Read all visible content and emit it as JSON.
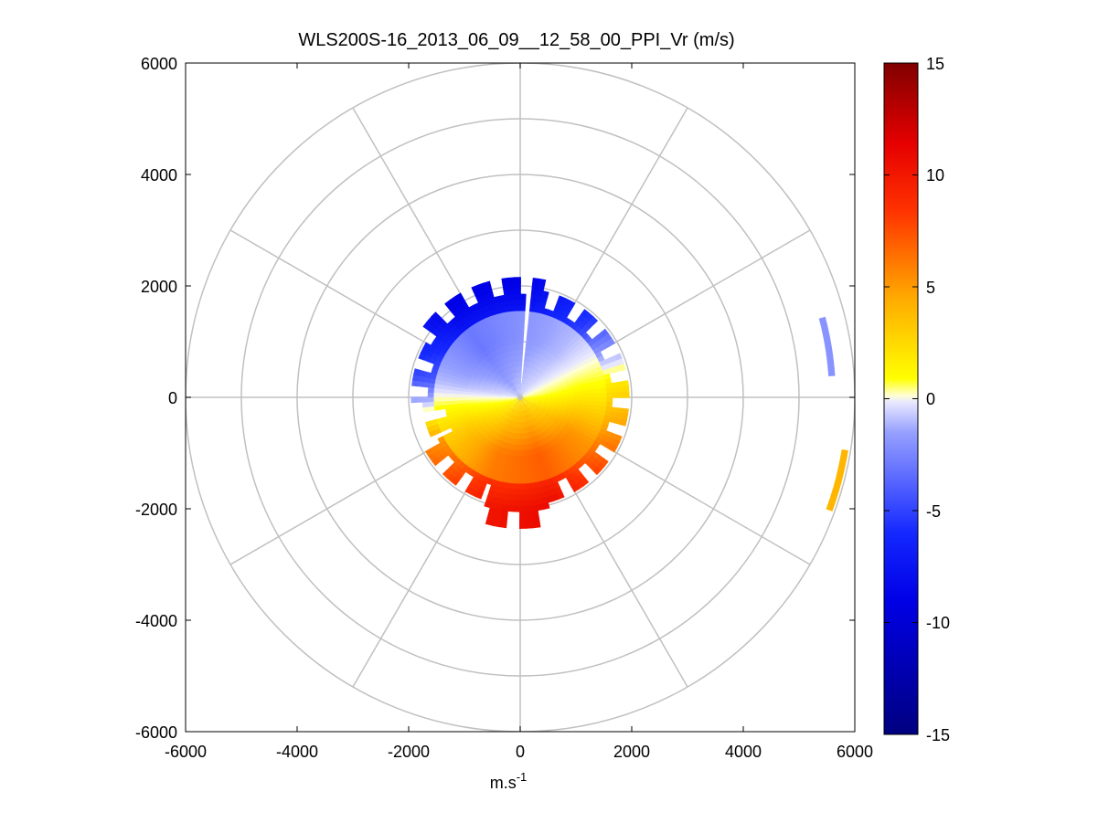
{
  "chart_data": {
    "type": "heatmap",
    "subtype": "lidar-ppi-polar",
    "title": "WLS200S-16_2013_06_09__12_58_00_PPI_Vr (m/s)",
    "xlabel_main": "m.s",
    "xlabel_sup": "-1",
    "ylabel": "",
    "xlim": [
      -6000,
      6000
    ],
    "ylim": [
      -6000,
      6000
    ],
    "x_ticks": [
      "-6000",
      "-4000",
      "-2000",
      "0",
      "2000",
      "4000",
      "6000"
    ],
    "y_ticks": [
      "6000",
      "4000",
      "2000",
      "0",
      "-2000",
      "-4000",
      "-6000"
    ],
    "x_tick_values": [
      -6000,
      -4000,
      -2000,
      0,
      2000,
      4000,
      6000
    ],
    "y_tick_values": [
      6000,
      4000,
      2000,
      0,
      -2000,
      -4000,
      -6000
    ],
    "polar_grid": {
      "range_rings": [
        1000,
        2000,
        3000,
        4000,
        5000,
        6000
      ],
      "spoke_angles_deg": [
        0,
        30,
        60,
        90,
        120,
        150,
        180,
        210,
        240,
        270,
        300,
        330
      ],
      "grid_color": "#c0c0c0"
    },
    "colorbar": {
      "limits": [
        -15,
        15
      ],
      "tick_labels": [
        "15",
        "10",
        "5",
        "0",
        "-5",
        "-10",
        "-15"
      ],
      "tick_values": [
        15,
        10,
        5,
        0,
        -5,
        -10,
        -15
      ]
    },
    "data_description": "Radial velocity field: negative (blue) in the northern half, positive (yellow-red) in the southern half, zero line oriented roughly WSW-ENE; velocity magnitude increases with range; data mostly within 2000 m range.",
    "sectors": [
      {
        "az_deg": 0,
        "r": 1000,
        "v": -2
      },
      {
        "az_deg": 0,
        "r": 2000,
        "v": -9
      },
      {
        "az_deg": 40,
        "r": 1000,
        "v": -1
      },
      {
        "az_deg": 40,
        "r": 2000,
        "v": -6
      },
      {
        "az_deg": 80,
        "r": 1000,
        "v": 1
      },
      {
        "az_deg": 80,
        "r": 2000,
        "v": 2
      },
      {
        "az_deg": 120,
        "r": 1000,
        "v": 5
      },
      {
        "az_deg": 120,
        "r": 2000,
        "v": 7
      },
      {
        "az_deg": 160,
        "r": 1000,
        "v": 7
      },
      {
        "az_deg": 160,
        "r": 2000,
        "v": 11
      },
      {
        "az_deg": 180,
        "r": 2300,
        "v": 14
      },
      {
        "az_deg": 200,
        "r": 1000,
        "v": 6
      },
      {
        "az_deg": 200,
        "r": 2000,
        "v": 10
      },
      {
        "az_deg": 240,
        "r": 1000,
        "v": 3
      },
      {
        "az_deg": 240,
        "r": 2000,
        "v": 6
      },
      {
        "az_deg": 280,
        "r": 1000,
        "v": -1
      },
      {
        "az_deg": 280,
        "r": 2000,
        "v": -5
      },
      {
        "az_deg": 320,
        "r": 1000,
        "v": -3
      },
      {
        "az_deg": 320,
        "r": 2000,
        "v": -9
      },
      {
        "az_deg": 80,
        "r": 5600,
        "v": -2
      },
      {
        "az_deg": 104,
        "r": 5900,
        "v": 4
      }
    ]
  }
}
